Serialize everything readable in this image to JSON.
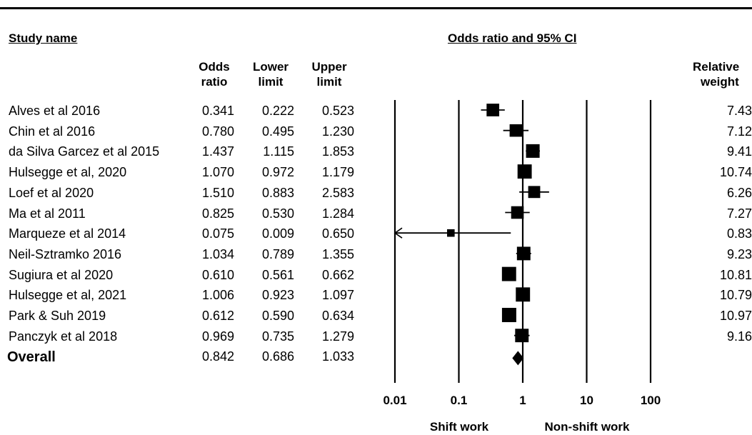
{
  "headers": {
    "study_name": "Study name",
    "plot_title": "Odds ratio and 95% CI",
    "odds_ratio": [
      "Odds",
      "ratio"
    ],
    "lower_limit": [
      "Lower",
      "limit"
    ],
    "upper_limit": [
      "Upper",
      "limit"
    ],
    "relative_weight": [
      "Relative",
      "weight"
    ]
  },
  "studies": [
    {
      "name": "Alves et al 2016",
      "or": "0.341",
      "lower": "0.222",
      "upper": "0.523",
      "weight": "7.43"
    },
    {
      "name": "Chin et al 2016",
      "or": "0.780",
      "lower": "0.495",
      "upper": "1.230",
      "weight": "7.12"
    },
    {
      "name": "da Silva Garcez et al 2015",
      "or": "1.437",
      "lower": "1.115",
      "upper": "1.853",
      "weight": "9.41"
    },
    {
      "name": "Hulsegge et al, 2020",
      "or": "1.070",
      "lower": "0.972",
      "upper": "1.179",
      "weight": "10.74"
    },
    {
      "name": "Loef et al 2020",
      "or": "1.510",
      "lower": "0.883",
      "upper": "2.583",
      "weight": "6.26"
    },
    {
      "name": "Ma et al 2011",
      "or": "0.825",
      "lower": "0.530",
      "upper": "1.284",
      "weight": "7.27"
    },
    {
      "name": "Marqueze et al 2014",
      "or": "0.075",
      "lower": "0.009",
      "upper": "0.650",
      "weight": "0.83"
    },
    {
      "name": "Neil-Sztramko 2016",
      "or": "1.034",
      "lower": "0.789",
      "upper": "1.355",
      "weight": "9.23"
    },
    {
      "name": "Sugiura et al 2020",
      "or": "0.610",
      "lower": "0.561",
      "upper": "0.662",
      "weight": "10.81"
    },
    {
      "name": "Hulsegge et al, 2021",
      "or": "1.006",
      "lower": "0.923",
      "upper": "1.097",
      "weight": "10.79"
    },
    {
      "name": "Park & Suh 2019",
      "or": "0.612",
      "lower": "0.590",
      "upper": "0.634",
      "weight": "10.97"
    },
    {
      "name": "Panczyk et al 2018",
      "or": "0.969",
      "lower": "0.735",
      "upper": "1.279",
      "weight": "9.16"
    }
  ],
  "overall": {
    "name": "Overall",
    "or": "0.842",
    "lower": "0.686",
    "upper": "1.033"
  },
  "chart_data": {
    "type": "forest",
    "title": "Odds ratio and 95% CI",
    "x_scale": "log",
    "xlim": [
      0.01,
      100
    ],
    "ticks": [
      0.01,
      0.1,
      1,
      10,
      100
    ],
    "tick_labels": [
      "0.01",
      "0.1",
      "1",
      "10",
      "100"
    ],
    "left_label": "Shift work",
    "right_label": "Non-shift work",
    "reference_line": 1,
    "studies": [
      {
        "name": "Alves et al 2016",
        "or": 0.341,
        "lower": 0.222,
        "upper": 0.523,
        "weight": 7.43
      },
      {
        "name": "Chin et al 2016",
        "or": 0.78,
        "lower": 0.495,
        "upper": 1.23,
        "weight": 7.12
      },
      {
        "name": "da Silva Garcez et al 2015",
        "or": 1.437,
        "lower": 1.115,
        "upper": 1.853,
        "weight": 9.41
      },
      {
        "name": "Hulsegge et al, 2020",
        "or": 1.07,
        "lower": 0.972,
        "upper": 1.179,
        "weight": 10.74
      },
      {
        "name": "Loef et al 2020",
        "or": 1.51,
        "lower": 0.883,
        "upper": 2.583,
        "weight": 6.26
      },
      {
        "name": "Ma et al 2011",
        "or": 0.825,
        "lower": 0.53,
        "upper": 1.284,
        "weight": 7.27
      },
      {
        "name": "Marqueze et al 2014",
        "or": 0.075,
        "lower": 0.009,
        "upper": 0.65,
        "weight": 0.83
      },
      {
        "name": "Neil-Sztramko 2016",
        "or": 1.034,
        "lower": 0.789,
        "upper": 1.355,
        "weight": 9.23
      },
      {
        "name": "Sugiura et al 2020",
        "or": 0.61,
        "lower": 0.561,
        "upper": 0.662,
        "weight": 10.81
      },
      {
        "name": "Hulsegge et al, 2021",
        "or": 1.006,
        "lower": 0.923,
        "upper": 1.097,
        "weight": 10.79
      },
      {
        "name": "Park & Suh 2019",
        "or": 0.612,
        "lower": 0.59,
        "upper": 0.634,
        "weight": 10.97
      },
      {
        "name": "Panczyk et al 2018",
        "or": 0.969,
        "lower": 0.735,
        "upper": 1.279,
        "weight": 9.16
      }
    ],
    "overall": {
      "or": 0.842,
      "lower": 0.686,
      "upper": 1.033
    }
  }
}
